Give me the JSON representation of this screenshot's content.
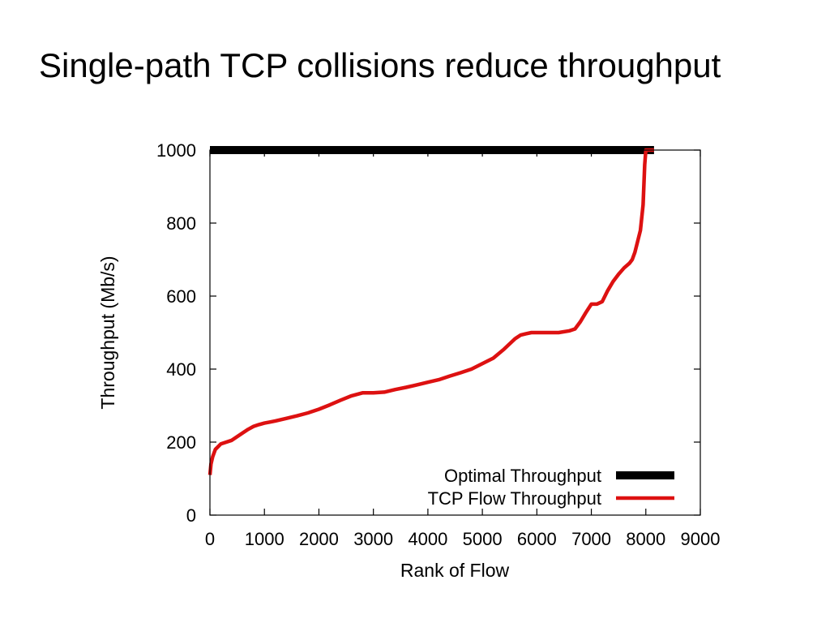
{
  "slide": {
    "title": "Single-path TCP collisions reduce throughput"
  },
  "chart_data": {
    "type": "line",
    "title": "",
    "xlabel": "Rank of Flow",
    "ylabel": "Throughput (Mb/s)",
    "xlim": [
      0,
      9000
    ],
    "ylim": [
      0,
      1000
    ],
    "x_ticks": [
      0,
      1000,
      2000,
      3000,
      4000,
      5000,
      6000,
      7000,
      8000,
      9000
    ],
    "y_ticks": [
      0,
      200,
      400,
      600,
      800,
      1000
    ],
    "x_tick_labels": [
      "0",
      "1000",
      "2000",
      "3000",
      "4000",
      "5000",
      "6000",
      "7000",
      "8000",
      "9000"
    ],
    "y_tick_labels": [
      "0",
      "200",
      "400",
      "600",
      "800",
      "1000"
    ],
    "grid": false,
    "legend_position": "bottom-right",
    "series": [
      {
        "name": "Optimal Throughput",
        "color": "#000000",
        "x": [
          0,
          8150
        ],
        "y": [
          1000,
          1000
        ]
      },
      {
        "name": "TCP Flow Throughput",
        "color": "#dd1111",
        "x": [
          0,
          20,
          50,
          100,
          200,
          300,
          400,
          500,
          600,
          700,
          800,
          900,
          1000,
          1100,
          1200,
          1400,
          1600,
          1800,
          2000,
          2200,
          2400,
          2600,
          2800,
          2900,
          3000,
          3200,
          3400,
          3600,
          3800,
          4000,
          4200,
          4400,
          4600,
          4800,
          5000,
          5200,
          5400,
          5600,
          5700,
          5800,
          5900,
          6000,
          6200,
          6400,
          6600,
          6700,
          6800,
          6900,
          7000,
          7100,
          7200,
          7300,
          7400,
          7500,
          7600,
          7700,
          7750,
          7800,
          7850,
          7900,
          7950,
          7980,
          8000,
          8150
        ],
        "y": [
          110,
          140,
          160,
          180,
          195,
          200,
          205,
          215,
          225,
          235,
          243,
          248,
          252,
          255,
          258,
          265,
          272,
          280,
          290,
          302,
          315,
          327,
          335,
          335,
          335,
          337,
          344,
          350,
          357,
          364,
          371,
          381,
          390,
          400,
          415,
          430,
          455,
          483,
          493,
          497,
          500,
          500,
          500,
          500,
          505,
          510,
          530,
          555,
          578,
          578,
          585,
          615,
          640,
          660,
          677,
          690,
          700,
          720,
          750,
          780,
          850,
          960,
          1000,
          1000
        ]
      }
    ]
  }
}
